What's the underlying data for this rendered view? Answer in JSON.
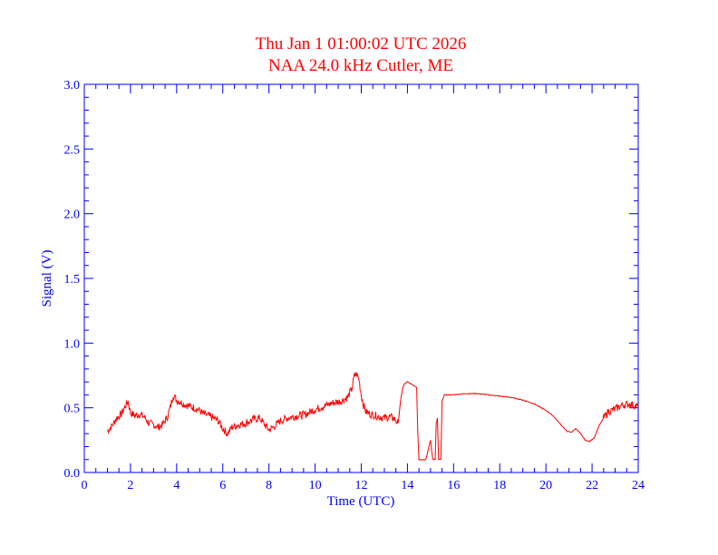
{
  "chart_data": {
    "type": "line",
    "title": "Thu Jan 1 01:00:02 UTC 2026",
    "subtitle": "NAA 24.0 kHz Cutler, ME",
    "xlabel": "Time (UTC)",
    "ylabel": "Signal (V)",
    "xlim": [
      0,
      24
    ],
    "ylim": [
      0,
      3.0
    ],
    "x_ticks": [
      "0",
      "2",
      "4",
      "6",
      "8",
      "10",
      "12",
      "14",
      "16",
      "18",
      "20",
      "22",
      "24"
    ],
    "y_ticks": [
      "0.0",
      "0.5",
      "1.0",
      "1.5",
      "2.0",
      "2.5",
      "3.0"
    ],
    "grid": false,
    "colors": {
      "axes": "#0000ff",
      "title": "#ff0000",
      "series": "#ff0000"
    },
    "series": [
      {
        "x": [
          1.0,
          1.2,
          1.4,
          1.6,
          1.8,
          1.9,
          2.0,
          2.2,
          2.4,
          2.6,
          2.8,
          3.0,
          3.2,
          3.4,
          3.6,
          3.75,
          3.85,
          4.0,
          4.3,
          4.6,
          4.9,
          5.2,
          5.5,
          5.8,
          6.0,
          6.2,
          6.4,
          6.7,
          7.0,
          7.3,
          7.6,
          7.9,
          8.0,
          8.2,
          8.5,
          8.8,
          9.0,
          9.3,
          9.6,
          9.9,
          10.2,
          10.5,
          10.8,
          11.1,
          11.4,
          11.6,
          11.7,
          11.8,
          11.9,
          12.0,
          12.1,
          12.2,
          12.4,
          12.6,
          12.8,
          13.0,
          13.2,
          13.4,
          13.6,
          13.7,
          13.8,
          13.9,
          14.0,
          14.1,
          14.2,
          14.4,
          14.45,
          14.5,
          14.6,
          14.8,
          15.0,
          15.1,
          15.2,
          15.25,
          15.3,
          15.35,
          15.45,
          15.5,
          15.6,
          15.7,
          15.8,
          16.0,
          16.5,
          17.0,
          17.5,
          18.0,
          18.5,
          19.0,
          19.5,
          20.0,
          20.3,
          20.6,
          20.9,
          21.1,
          21.3,
          21.5,
          21.7,
          21.9,
          22.1,
          22.3,
          22.5,
          22.7,
          23.0,
          23.3,
          23.6,
          23.8,
          24.0
        ],
        "y": [
          0.32,
          0.36,
          0.42,
          0.45,
          0.52,
          0.55,
          0.46,
          0.44,
          0.45,
          0.43,
          0.38,
          0.37,
          0.35,
          0.37,
          0.43,
          0.52,
          0.6,
          0.56,
          0.53,
          0.51,
          0.49,
          0.45,
          0.43,
          0.4,
          0.34,
          0.3,
          0.35,
          0.37,
          0.38,
          0.41,
          0.42,
          0.35,
          0.33,
          0.35,
          0.4,
          0.42,
          0.43,
          0.44,
          0.45,
          0.48,
          0.5,
          0.52,
          0.54,
          0.55,
          0.58,
          0.65,
          0.75,
          0.76,
          0.72,
          0.6,
          0.52,
          0.47,
          0.45,
          0.44,
          0.43,
          0.42,
          0.43,
          0.42,
          0.38,
          0.55,
          0.66,
          0.69,
          0.7,
          0.69,
          0.68,
          0.66,
          0.3,
          0.1,
          0.1,
          0.1,
          0.25,
          0.1,
          0.1,
          0.38,
          0.42,
          0.1,
          0.1,
          0.55,
          0.6,
          0.6,
          0.6,
          0.6,
          0.61,
          0.61,
          0.6,
          0.59,
          0.58,
          0.56,
          0.53,
          0.48,
          0.44,
          0.38,
          0.32,
          0.31,
          0.34,
          0.3,
          0.25,
          0.24,
          0.27,
          0.36,
          0.42,
          0.47,
          0.49,
          0.52,
          0.53,
          0.52,
          0.51
        ]
      }
    ]
  }
}
